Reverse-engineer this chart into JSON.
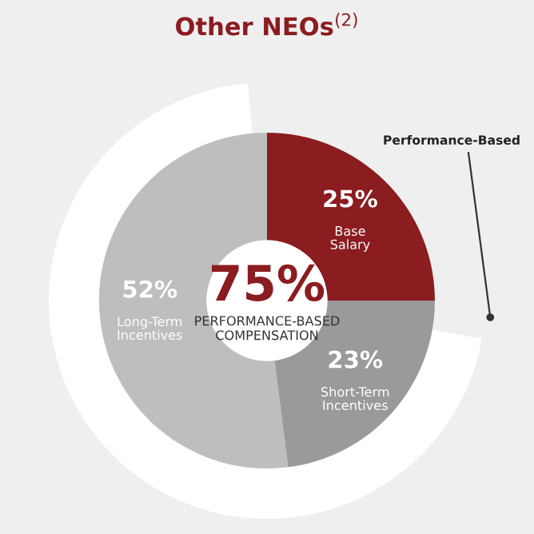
{
  "chart_data": {
    "type": "donut",
    "title": "Other NEOs$^{(2)}$",
    "categories": [
      "Base Salary",
      "Short-Term Incentives",
      "Long-Term Incentives"
    ],
    "values": [
      25,
      23,
      52
    ],
    "colors": [
      "#8b1c20",
      "#9a9a9d",
      "#bebec0"
    ],
    "value_labels": [
      "25%",
      "23%",
      "52%"
    ],
    "annotations": [
      "75%",
      "PERFORMANCE-BASED COMPENSATION",
      "Performance-Based"
    ]
  }
}
